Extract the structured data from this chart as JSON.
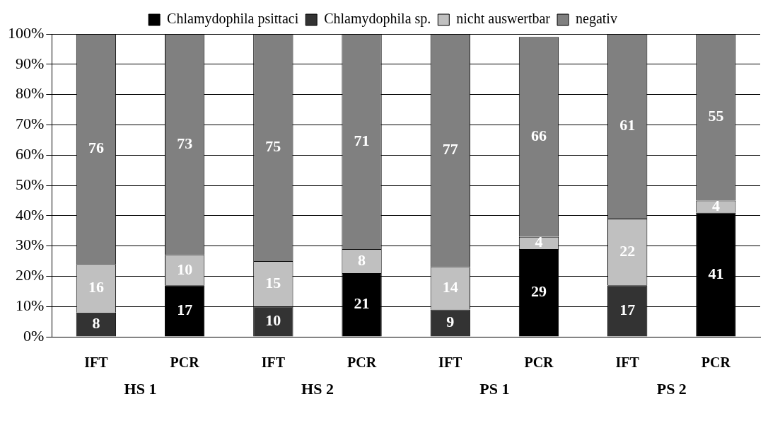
{
  "chart_data": {
    "type": "bar",
    "stacked": true,
    "categories": [
      "IFT",
      "PCR",
      "IFT",
      "PCR",
      "IFT",
      "PCR",
      "IFT",
      "PCR"
    ],
    "series": [
      {
        "name": "Chlamydophila psittaci",
        "color": "#000000",
        "values": [
          null,
          17,
          null,
          21,
          null,
          29,
          null,
          41
        ]
      },
      {
        "name": "Chlamydophila sp.",
        "color": "#333333",
        "values": [
          8,
          null,
          10,
          null,
          9,
          null,
          17,
          null
        ]
      },
      {
        "name": "nicht auswertbar",
        "color": "#c0c0c0",
        "values": [
          16,
          10,
          15,
          8,
          14,
          4,
          22,
          4
        ]
      },
      {
        "name": "negativ",
        "color": "#808080",
        "values": [
          76,
          73,
          75,
          71,
          77,
          66,
          61,
          55
        ]
      }
    ],
    "ylim": [
      0,
      100
    ],
    "yticks": [
      {
        "value": 0,
        "label": "0%"
      },
      {
        "value": 10,
        "label": "10%"
      },
      {
        "value": 20,
        "label": "20%"
      },
      {
        "value": 30,
        "label": "30%"
      },
      {
        "value": 40,
        "label": "40%"
      },
      {
        "value": 50,
        "label": "50%"
      },
      {
        "value": 60,
        "label": "60%"
      },
      {
        "value": 70,
        "label": "70%"
      },
      {
        "value": 80,
        "label": "80%"
      },
      {
        "value": 90,
        "label": "90%"
      },
      {
        "value": 100,
        "label": "100%"
      }
    ],
    "grid": "y",
    "legend": "top",
    "data_labels": true,
    "annotations": [
      "HS 1",
      "HS 2",
      "PS 1",
      "PS 2"
    ]
  }
}
